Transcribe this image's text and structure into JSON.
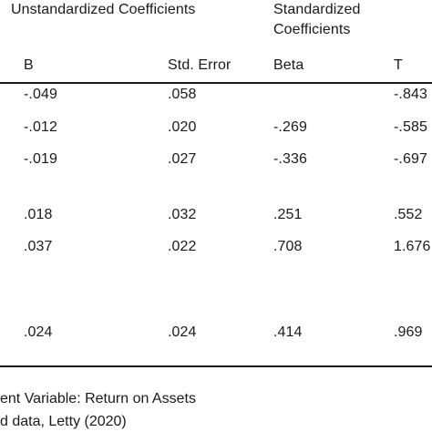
{
  "header": {
    "group_unstandardized": "Unstandardized Coefficients",
    "group_standardized_line1": "Standardized",
    "group_standardized_line2": "Coefficients",
    "col_b": "B",
    "col_std_error": "Std. Error",
    "col_beta": "Beta",
    "col_t": "T"
  },
  "rows": [
    {
      "b": "-.049",
      "se": ".058",
      "beta": "",
      "t": "-.843"
    },
    {
      "b": "-.012",
      "se": ".020",
      "beta": "-.269",
      "t": "-.585"
    },
    {
      "b": "-.019",
      "se": ".027",
      "beta": "-.336",
      "t": "-.697"
    },
    {
      "b": ".018",
      "se": ".032",
      "beta": ".251",
      "t": ".552"
    },
    {
      "b": ".037",
      "se": ".022",
      "beta": ".708",
      "t": "1.676"
    },
    {
      "b": ".024",
      "se": ".024",
      "beta": ".414",
      "t": ".969"
    }
  ],
  "footnotes": {
    "dependent_variable": "ent Variable: Return on Assets",
    "source": "d data, Letty (2020)"
  }
}
